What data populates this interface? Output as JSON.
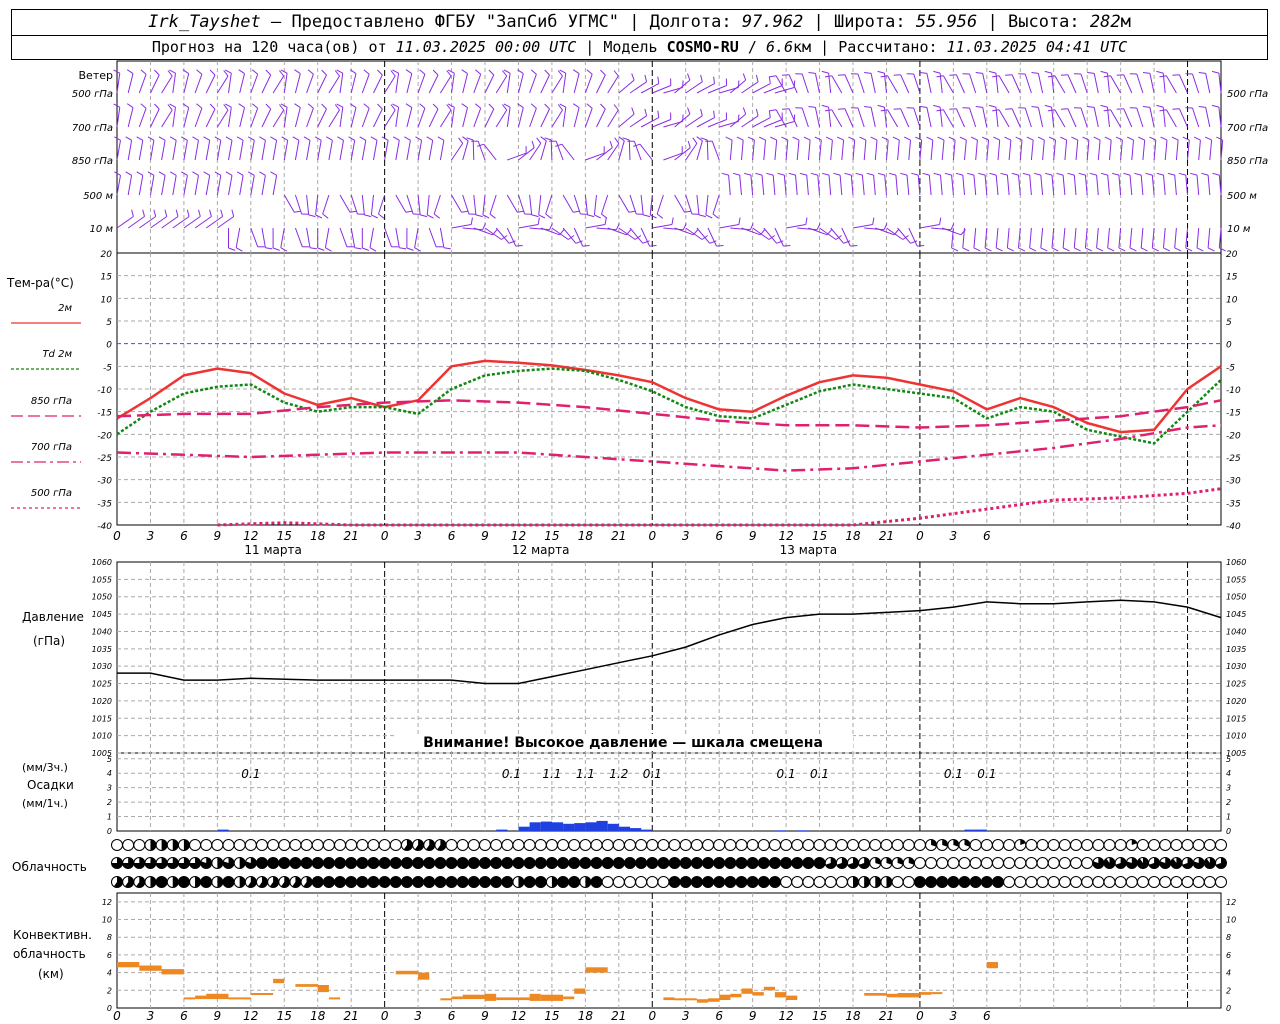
{
  "header": {
    "station": "Irk_Tayshet",
    "provider": "Предоставлено ФГБУ \"ЗапСиб УГМС\"",
    "lon_label": "Долгота:",
    "lon": "97.962",
    "lat_label": "Широта:",
    "lat": "55.956",
    "alt_label": "Высота:",
    "alt": "282",
    "alt_unit": "м",
    "forecast_prefix": "Прогноз на 120 часа(ов) от",
    "forecast_start": "11.03.2025 00:00 UTC",
    "model_label": "Модель",
    "model": "COSMO-RU",
    "res": "6.6",
    "res_unit": "км",
    "calc_label": "Рассчитано:",
    "calc_time": "11.03.2025 04:41 UTC"
  },
  "labels": {
    "wind": "Ветер",
    "wind_levels": [
      "500 гПа",
      "700 гПа",
      "850 гПа",
      "500 м",
      "10 м"
    ],
    "temp": "Тем-ра(°С)",
    "temp_legend": [
      "2м",
      "Td  2м",
      "850 гПа",
      "700 гПа",
      "500 гПа"
    ],
    "pressure": "Давление",
    "pressure_unit": "(гПа)",
    "pressure_warning": "Внимание! Высокое давление — шкала смещена",
    "precip_3h": "(мм/3ч.)",
    "precip": "Осадки",
    "precip_1h": "(мм/1ч.)",
    "cloud": "Облачность",
    "conv1": "Конвективн.",
    "conv2": "облачность",
    "conv3": "(км)"
  },
  "colors": {
    "temp2m": "#ee3333",
    "td2m": "#118811",
    "t850": "#e0206e",
    "t700": "#e0206e",
    "t500": "#e0206e",
    "wind": "#8a2be2",
    "precip": "#2040e0",
    "conv": "#ee8822",
    "zero": "#3355dd"
  },
  "chart_data": [
    {
      "type": "line",
      "title": "Тем-ра(°С)",
      "x_hours_step": 1,
      "x_tick_labels": [
        "0",
        "3",
        "6",
        "9",
        "12",
        "15",
        "18",
        "21",
        "0",
        "3",
        "6",
        "9",
        "12",
        "15",
        "18",
        "21",
        "0",
        "3",
        "6",
        "9",
        "12",
        "15",
        "18",
        "21",
        "0",
        "3",
        "6"
      ],
      "day_labels": [
        "11 марта",
        "12 марта",
        "13 марта"
      ],
      "ylim": [
        -40,
        20
      ],
      "yticks": [
        20,
        15,
        10,
        5,
        0,
        -5,
        -10,
        -15,
        -20,
        -25,
        -30,
        -35,
        -40
      ],
      "series": [
        {
          "name": "2м",
          "points": [
            [
              0,
              -16.5
            ],
            [
              3,
              -12
            ],
            [
              6,
              -7
            ],
            [
              9,
              -5.5
            ],
            [
              12,
              -6.5
            ],
            [
              15,
              -11
            ],
            [
              18,
              -13.5
            ],
            [
              21,
              -12
            ],
            [
              24,
              -14
            ],
            [
              27,
              -12.5
            ],
            [
              30,
              -5
            ],
            [
              33,
              -3.8
            ],
            [
              36,
              -4.2
            ],
            [
              39,
              -4.8
            ],
            [
              42,
              -5.8
            ],
            [
              45,
              -7
            ],
            [
              48,
              -8.5
            ],
            [
              51,
              -12
            ],
            [
              54,
              -14.5
            ],
            [
              57,
              -15
            ],
            [
              60,
              -11.5
            ],
            [
              63,
              -8.5
            ],
            [
              66,
              -7
            ],
            [
              69,
              -7.5
            ],
            [
              72,
              -9
            ],
            [
              75,
              -10.5
            ],
            [
              78,
              -14.5
            ],
            [
              81,
              -12
            ],
            [
              84,
              -14
            ],
            [
              87,
              -17.5
            ],
            [
              90,
              -19.5
            ],
            [
              93,
              -19
            ],
            [
              96,
              -10
            ],
            [
              99,
              -5
            ]
          ]
        },
        {
          "name": "Td 2м",
          "points": [
            [
              0,
              -20
            ],
            [
              3,
              -15
            ],
            [
              6,
              -11
            ],
            [
              9,
              -9.5
            ],
            [
              12,
              -9
            ],
            [
              15,
              -13
            ],
            [
              18,
              -15
            ],
            [
              21,
              -14
            ],
            [
              24,
              -14
            ],
            [
              27,
              -15.5
            ],
            [
              30,
              -10
            ],
            [
              33,
              -7
            ],
            [
              36,
              -6
            ],
            [
              39,
              -5.5
            ],
            [
              42,
              -6
            ],
            [
              45,
              -8
            ],
            [
              48,
              -10.5
            ],
            [
              51,
              -14
            ],
            [
              54,
              -16
            ],
            [
              57,
              -16.5
            ],
            [
              60,
              -13.5
            ],
            [
              63,
              -10.5
            ],
            [
              66,
              -9
            ],
            [
              69,
              -10
            ],
            [
              72,
              -11
            ],
            [
              75,
              -12
            ],
            [
              78,
              -16.5
            ],
            [
              81,
              -14
            ],
            [
              84,
              -15
            ],
            [
              87,
              -19
            ],
            [
              90,
              -20.5
            ],
            [
              93,
              -22
            ],
            [
              96,
              -15
            ],
            [
              99,
              -8
            ]
          ]
        },
        {
          "name": "850 гПа",
          "points": [
            [
              0,
              -16
            ],
            [
              6,
              -15.5
            ],
            [
              9,
              -15.5
            ],
            [
              12,
              -15.5
            ],
            [
              18,
              -14
            ],
            [
              24,
              -13
            ],
            [
              30,
              -12.5
            ],
            [
              36,
              -13
            ],
            [
              42,
              -14
            ],
            [
              48,
              -15.5
            ],
            [
              54,
              -17
            ],
            [
              60,
              -18
            ],
            [
              66,
              -18
            ],
            [
              72,
              -18.5
            ],
            [
              78,
              -18
            ],
            [
              84,
              -17
            ],
            [
              90,
              -16
            ],
            [
              96,
              -14
            ],
            [
              99,
              -12.5
            ]
          ]
        },
        {
          "name": "700 гПа",
          "points": [
            [
              0,
              -24
            ],
            [
              12,
              -25
            ],
            [
              24,
              -24
            ],
            [
              36,
              -24
            ],
            [
              42,
              -25
            ],
            [
              48,
              -26
            ],
            [
              54,
              -27
            ],
            [
              60,
              -28
            ],
            [
              66,
              -27.5
            ],
            [
              72,
              -26
            ],
            [
              78,
              -24.5
            ],
            [
              84,
              -23
            ],
            [
              90,
              -21
            ],
            [
              96,
              -18.5
            ],
            [
              99,
              -18
            ]
          ]
        },
        {
          "name": "500 гПа",
          "points": [
            [
              9,
              -40
            ],
            [
              15,
              -39.5
            ],
            [
              21,
              -40
            ],
            [
              66,
              -40
            ],
            [
              72,
              -38.5
            ],
            [
              78,
              -36.5
            ],
            [
              84,
              -34.5
            ],
            [
              90,
              -34
            ],
            [
              96,
              -33
            ],
            [
              99,
              -32
            ]
          ]
        }
      ]
    },
    {
      "type": "line",
      "title": "Давление",
      "ylabel": "(гПа)",
      "ylim": [
        1005,
        1060
      ],
      "yticks": [
        1060,
        1055,
        1050,
        1045,
        1040,
        1035,
        1030,
        1025,
        1020,
        1015,
        1010,
        1005
      ],
      "series": [
        {
          "name": "Давление",
          "points": [
            [
              0,
              1028
            ],
            [
              3,
              1028
            ],
            [
              6,
              1026
            ],
            [
              9,
              1026
            ],
            [
              12,
              1026.5
            ],
            [
              18,
              1026
            ],
            [
              24,
              1026
            ],
            [
              30,
              1026
            ],
            [
              33,
              1025
            ],
            [
              36,
              1025
            ],
            [
              39,
              1027
            ],
            [
              42,
              1029
            ],
            [
              45,
              1031
            ],
            [
              48,
              1033
            ],
            [
              51,
              1035.5
            ],
            [
              54,
              1039
            ],
            [
              57,
              1042
            ],
            [
              60,
              1044
            ],
            [
              63,
              1045
            ],
            [
              66,
              1045
            ],
            [
              69,
              1045.5
            ],
            [
              72,
              1046
            ],
            [
              75,
              1047
            ],
            [
              78,
              1048.5
            ],
            [
              81,
              1048
            ],
            [
              84,
              1048
            ],
            [
              87,
              1048.5
            ],
            [
              90,
              1049
            ],
            [
              93,
              1048.5
            ],
            [
              96,
              1047
            ],
            [
              99,
              1044
            ]
          ]
        }
      ]
    },
    {
      "type": "bar",
      "title": "Осадки",
      "ylim": [
        0,
        5
      ],
      "yticks": [
        5,
        4,
        3,
        2,
        1,
        0
      ],
      "values_3h": [
        {
          "x": 12,
          "v": 0.1
        },
        {
          "x": 36,
          "v": 0.1
        },
        {
          "x": 39,
          "v": 1.1
        },
        {
          "x": 42,
          "v": 1.1
        },
        {
          "x": 45,
          "v": 1.2
        },
        {
          "x": 48,
          "v": 0.1
        },
        {
          "x": 60,
          "v": 0.1
        },
        {
          "x": 63,
          "v": 0.1
        },
        {
          "x": 75,
          "v": 0.1
        },
        {
          "x": 78,
          "v": 0.1
        }
      ],
      "labels_3h": [
        "0.1",
        "0.1",
        "1.1",
        "1.1",
        "1.2",
        "0.1",
        "0.1",
        "0.1",
        "0.1",
        "0.1"
      ],
      "hourly": [
        {
          "x": 10,
          "v": 0.1
        },
        {
          "x": 35,
          "v": 0.1
        },
        {
          "x": 37,
          "v": 0.3
        },
        {
          "x": 38,
          "v": 0.6
        },
        {
          "x": 39,
          "v": 0.65
        },
        {
          "x": 40,
          "v": 0.6
        },
        {
          "x": 41,
          "v": 0.5
        },
        {
          "x": 42,
          "v": 0.55
        },
        {
          "x": 43,
          "v": 0.6
        },
        {
          "x": 44,
          "v": 0.7
        },
        {
          "x": 45,
          "v": 0.5
        },
        {
          "x": 46,
          "v": 0.3
        },
        {
          "x": 47,
          "v": 0.2
        },
        {
          "x": 48,
          "v": 0.1
        },
        {
          "x": 60,
          "v": 0.05
        },
        {
          "x": 62,
          "v": 0.05
        },
        {
          "x": 77,
          "v": 0.1
        },
        {
          "x": 78,
          "v": 0.1
        }
      ]
    },
    {
      "type": "bar",
      "title": "Конвективн. облачность (км)",
      "ylim": [
        0,
        13
      ],
      "yticks": [
        12,
        10,
        8,
        6,
        4,
        2,
        0
      ],
      "segments": [
        {
          "x0": 0,
          "x1": 2,
          "bottom": 4.6,
          "top": 5.2
        },
        {
          "x0": 2,
          "x1": 4,
          "bottom": 4.2,
          "top": 4.8
        },
        {
          "x0": 4,
          "x1": 6,
          "bottom": 3.8,
          "top": 4.4
        },
        {
          "x0": 6,
          "x1": 7,
          "bottom": 1.0,
          "top": 1.2
        },
        {
          "x0": 7,
          "x1": 8,
          "bottom": 1.0,
          "top": 1.4
        },
        {
          "x0": 8,
          "x1": 10,
          "bottom": 1.0,
          "top": 1.6
        },
        {
          "x0": 10,
          "x1": 12,
          "bottom": 1.0,
          "top": 1.2
        },
        {
          "x0": 12,
          "x1": 14,
          "bottom": 1.5,
          "top": 1.7
        },
        {
          "x0": 14,
          "x1": 15,
          "bottom": 2.8,
          "top": 3.3
        },
        {
          "x0": 16,
          "x1": 18,
          "bottom": 2.4,
          "top": 2.7
        },
        {
          "x0": 18,
          "x1": 19,
          "bottom": 1.8,
          "top": 2.6
        },
        {
          "x0": 19,
          "x1": 20,
          "bottom": 1.0,
          "top": 1.2
        },
        {
          "x0": 25,
          "x1": 27,
          "bottom": 3.8,
          "top": 4.2
        },
        {
          "x0": 27,
          "x1": 28,
          "bottom": 3.2,
          "top": 4.0
        },
        {
          "x0": 29,
          "x1": 30,
          "bottom": 0.9,
          "top": 1.1
        },
        {
          "x0": 30,
          "x1": 31,
          "bottom": 1.0,
          "top": 1.3
        },
        {
          "x0": 31,
          "x1": 33,
          "bottom": 1.0,
          "top": 1.5
        },
        {
          "x0": 33,
          "x1": 34,
          "bottom": 0.8,
          "top": 1.6
        },
        {
          "x0": 34,
          "x1": 37,
          "bottom": 0.9,
          "top": 1.2
        },
        {
          "x0": 37,
          "x1": 38,
          "bottom": 0.8,
          "top": 1.6
        },
        {
          "x0": 38,
          "x1": 40,
          "bottom": 0.8,
          "top": 1.5
        },
        {
          "x0": 40,
          "x1": 41,
          "bottom": 1.0,
          "top": 1.3
        },
        {
          "x0": 41,
          "x1": 42,
          "bottom": 1.6,
          "top": 2.2
        },
        {
          "x0": 42,
          "x1": 44,
          "bottom": 4.0,
          "top": 4.6
        },
        {
          "x0": 49,
          "x1": 50,
          "bottom": 0.9,
          "top": 1.2
        },
        {
          "x0": 50,
          "x1": 52,
          "bottom": 0.9,
          "top": 1.1
        },
        {
          "x0": 52,
          "x1": 53,
          "bottom": 0.6,
          "top": 1.0
        },
        {
          "x0": 53,
          "x1": 54,
          "bottom": 0.7,
          "top": 1.1
        },
        {
          "x0": 54,
          "x1": 55,
          "bottom": 0.9,
          "top": 1.5
        },
        {
          "x0": 55,
          "x1": 56,
          "bottom": 1.2,
          "top": 1.6
        },
        {
          "x0": 56,
          "x1": 57,
          "bottom": 1.6,
          "top": 2.2
        },
        {
          "x0": 57,
          "x1": 58,
          "bottom": 1.4,
          "top": 1.8
        },
        {
          "x0": 58,
          "x1": 59,
          "bottom": 2.0,
          "top": 2.4
        },
        {
          "x0": 59,
          "x1": 60,
          "bottom": 1.2,
          "top": 1.8
        },
        {
          "x0": 60,
          "x1": 61,
          "bottom": 0.9,
          "top": 1.4
        },
        {
          "x0": 67,
          "x1": 69,
          "bottom": 1.4,
          "top": 1.7
        },
        {
          "x0": 69,
          "x1": 70,
          "bottom": 1.2,
          "top": 1.6
        },
        {
          "x0": 70,
          "x1": 72,
          "bottom": 1.2,
          "top": 1.7
        },
        {
          "x0": 72,
          "x1": 73,
          "bottom": 1.5,
          "top": 1.8
        },
        {
          "x0": 73,
          "x1": 74,
          "bottom": 1.6,
          "top": 1.8
        },
        {
          "x0": 78,
          "x1": 79,
          "bottom": 4.5,
          "top": 5.2
        }
      ]
    }
  ]
}
